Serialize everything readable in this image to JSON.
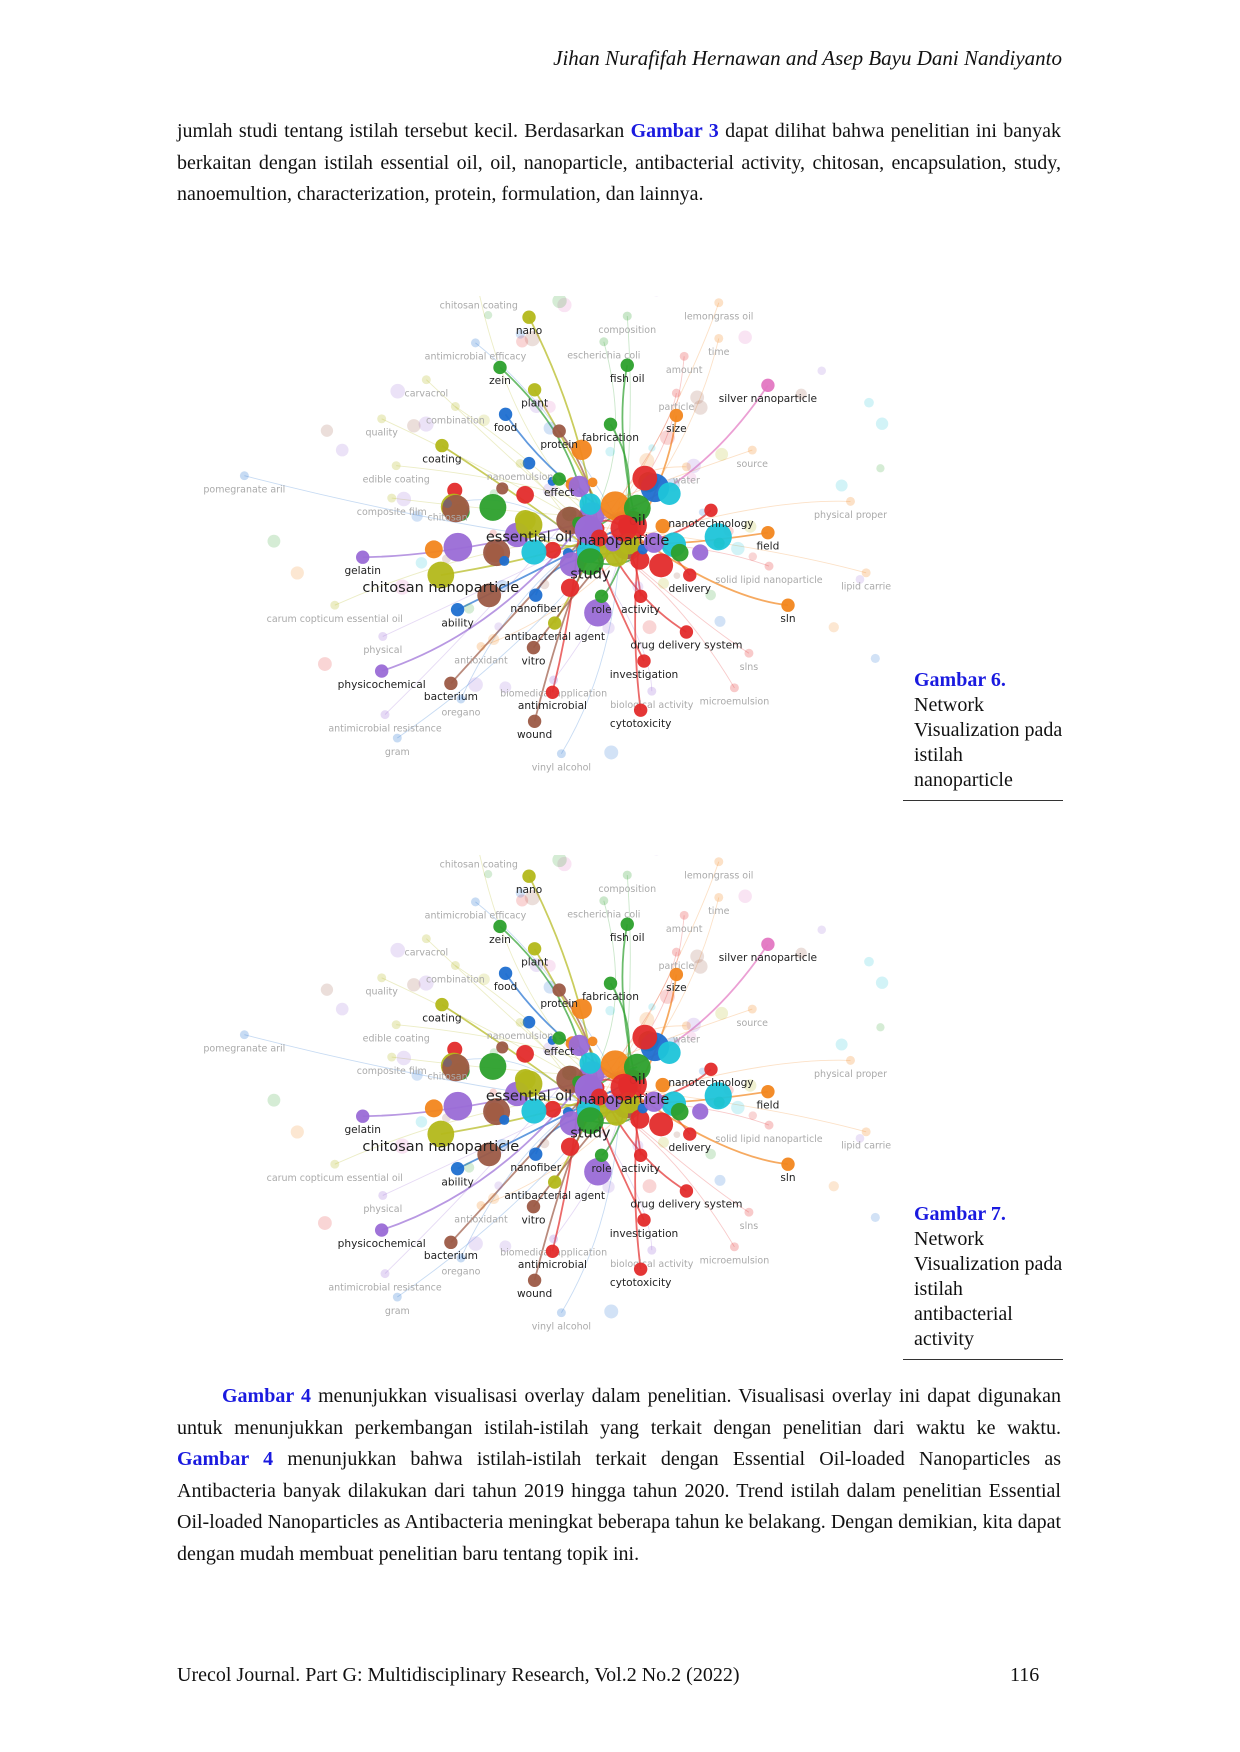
{
  "header": {
    "authors": "Jihan Nurafifah Hernawan and Asep Bayu Dani Nandiyanto"
  },
  "paragraph1": [
    "jumlah studi tentang istilah tersebut kecil. Berdasarkan ",
    "Gambar 3",
    " dapat dilihat bahwa penelitian ini banyak berkaitan dengan istilah essential oil, oil, nanoparticle, antibacterial activity, chitosan, encapsulation, study, nanoemultion, characterization, protein, formulation, dan lainnya."
  ],
  "network": {
    "labels": [
      "chitosan coating",
      "nano",
      "composition",
      "lemongrass oil",
      "antimicrobial efficacy",
      "escherichia coli",
      "time",
      "amount",
      "zein",
      "fish oil",
      "carvacrol",
      "plant",
      "particle",
      "silver nanoparticle",
      "combination",
      "food",
      "size",
      "quality",
      "fabrication",
      "protein",
      "coating",
      "source",
      "edible coating",
      "nanoemulsion",
      "pomegranate aril",
      "effect",
      "water",
      "composite film",
      "physical proper",
      "oil",
      "nanotechnology",
      "essential oil",
      "nanoparticle",
      "field",
      "chitosan",
      "gelatin",
      "study",
      "solid lipid nanoparticle",
      "lipid carrie",
      "chitosan nanoparticle",
      "delivery",
      "nanofiber",
      "role",
      "activity",
      "sln",
      "carum copticum essential oil",
      "ability",
      "antibacterial agent",
      "drug delivery system",
      "physical",
      "antioxidant",
      "vitro",
      "slns",
      "investigation",
      "physicochemical",
      "bacterium",
      "biomedical application",
      "antimicrobial",
      "biological activity",
      "microemulsion",
      "oregano",
      "cytotoxicity",
      "antimicrobial resistance",
      "wound",
      "gram",
      "vinyl alcohol"
    ]
  },
  "figures": [
    {
      "label": "Gambar 6.",
      "caption": "Network Visualization pada istilah nanoparticle"
    },
    {
      "label": "Gambar 7.",
      "caption": "Network Visualization pada istilah antibacterial activity"
    }
  ],
  "paragraph2": [
    "Gambar 4",
    " menunjukkan visualisasi overlay dalam penelitian. Visualisasi overlay ini dapat digunakan untuk menunjukkan perkembangan istilah-istilah yang terkait dengan penelitian dari waktu ke waktu. ",
    "Gambar 4",
    " menunjukkan bahwa istilah-istilah terkait dengan Essential Oil-loaded Nanoparticles as Antibacteria banyak dilakukan dari tahun 2019 hingga tahun 2020. Trend istilah dalam penelitian Essential Oil-loaded Nanoparticles as Antibacteria meningkat beberapa tahun ke belakang. Dengan demikian, kita dapat dengan mudah membuat penelitian baru tentang topik ini."
  ],
  "footer": {
    "journal": "Urecol Journal. Part G: Multidisciplinary Research, Vol.2 No.2 (2022)",
    "page": "116"
  }
}
